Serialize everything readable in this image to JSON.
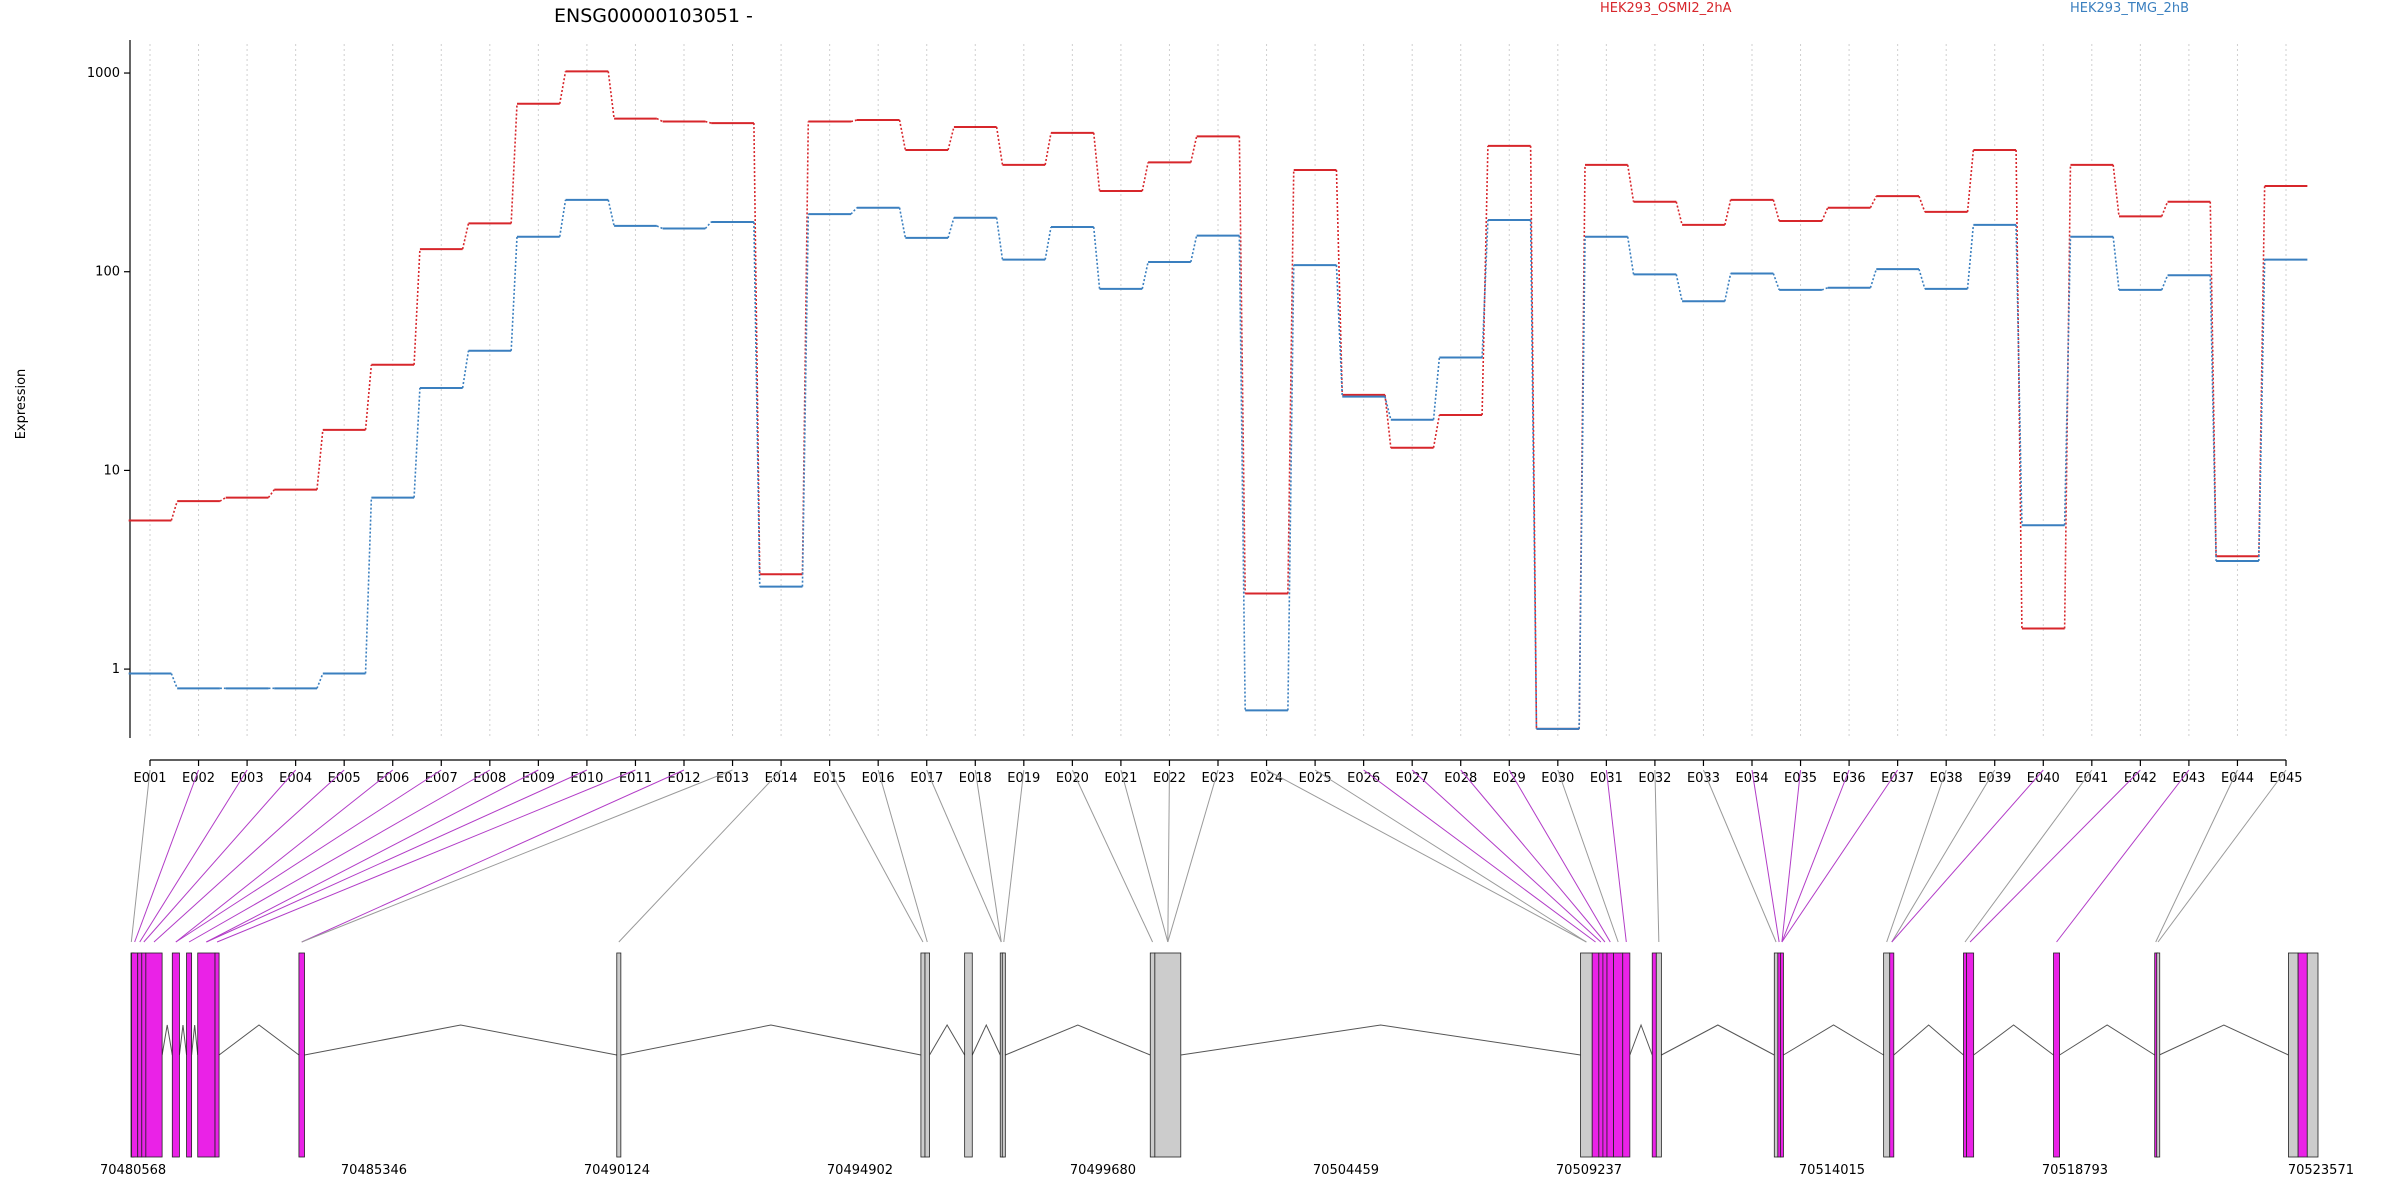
{
  "colors": {
    "series1": "#d7262b",
    "series2": "#3a7fbf",
    "highlight": "#ea22e7",
    "exon_gray": "#cccccc",
    "connector_gray": "#9a9a9a",
    "connector_magenta": "#b23cc7"
  },
  "chart_data": {
    "type": "line",
    "title": "ENSG00000103051 -",
    "ylabel": "Expression",
    "yscale": "log",
    "ylim": [
      0.45,
      1400
    ],
    "yticks": [
      "1",
      "10",
      "100",
      "1000"
    ],
    "categories": [
      "E001",
      "E002",
      "E003",
      "E004",
      "E005",
      "E006",
      "E007",
      "E008",
      "E009",
      "E010",
      "E011",
      "E012",
      "E013",
      "E014",
      "E015",
      "E016",
      "E017",
      "E018",
      "E019",
      "E020",
      "E021",
      "E022",
      "E023",
      "E024",
      "E025",
      "E026",
      "E027",
      "E028",
      "E029",
      "E030",
      "E031",
      "E032",
      "E033",
      "E034",
      "E035",
      "E036",
      "E037",
      "E038",
      "E039",
      "E040",
      "E041",
      "E042",
      "E043",
      "E044",
      "E045"
    ],
    "series": [
      {
        "name": "HEK293_OSMI2_2hA",
        "values": [
          5.6,
          7.0,
          7.3,
          8.0,
          16,
          34,
          130,
          175,
          700,
          1020,
          590,
          570,
          560,
          3.0,
          570,
          580,
          410,
          535,
          345,
          500,
          255,
          355,
          480,
          2.4,
          325,
          24,
          13,
          19,
          430,
          0.5,
          345,
          225,
          172,
          230,
          180,
          210,
          240,
          200,
          410,
          1.6,
          345,
          190,
          225,
          3.7,
          270
        ]
      },
      {
        "name": "HEK293_TMG_2hB",
        "values": [
          0.95,
          0.8,
          0.8,
          0.8,
          0.95,
          7.3,
          26,
          40,
          150,
          230,
          170,
          165,
          178,
          2.6,
          195,
          210,
          148,
          187,
          115,
          168,
          82,
          112,
          152,
          0.62,
          108,
          23.5,
          18,
          37,
          182,
          0.5,
          150,
          97,
          71,
          98,
          81,
          83,
          103,
          82,
          172,
          5.3,
          150,
          81,
          96,
          3.5,
          115
        ]
      }
    ],
    "genome_ticks": [
      "70480568",
      "70485346",
      "70490124",
      "70494902",
      "70499680",
      "70504459",
      "70509237",
      "70514015",
      "70518793",
      "70523571"
    ],
    "genome_range": [
      70480568,
      70523571
    ],
    "exon_bins": [
      [
        70480568,
        70480580
      ],
      [
        70480580,
        70480700
      ],
      [
        70480700,
        70480780
      ],
      [
        70480780,
        70480860
      ],
      [
        70480860,
        70481180
      ],
      [
        70481380,
        70481520
      ],
      [
        70481660,
        70481760
      ],
      [
        70481880,
        70482220
      ],
      [
        70482220,
        70482300
      ],
      [
        70483870,
        70483980
      ],
      [
        70490120,
        70490200
      ],
      [
        70496100,
        70496180
      ],
      [
        70496180,
        70496270
      ],
      [
        70496960,
        70497110
      ],
      [
        70497660,
        70497700
      ],
      [
        70497700,
        70497760
      ],
      [
        70500610,
        70500700
      ],
      [
        70500700,
        70501210
      ],
      [
        70509070,
        70509300
      ],
      [
        70509300,
        70509430
      ],
      [
        70509430,
        70509510
      ],
      [
        70509510,
        70509590
      ],
      [
        70509590,
        70509720
      ],
      [
        70509720,
        70509900
      ],
      [
        70509900,
        70510040
      ],
      [
        70510480,
        70510560
      ],
      [
        70510560,
        70510660
      ],
      [
        70512880,
        70512950
      ],
      [
        70512950,
        70513000
      ],
      [
        70513000,
        70513060
      ],
      [
        70515030,
        70515150
      ],
      [
        70515150,
        70515230
      ],
      [
        70516600,
        70516660
      ],
      [
        70516660,
        70516800
      ],
      [
        70518370,
        70518490
      ],
      [
        70520360,
        70520400
      ],
      [
        70520400,
        70520450
      ],
      [
        70522990,
        70523180
      ],
      [
        70523180,
        70523360
      ],
      [
        70523360,
        70523571
      ]
    ],
    "highlighted_exons": [
      "E002",
      "E003",
      "E004",
      "E005",
      "E006",
      "E007",
      "E008",
      "E009",
      "E010",
      "E011",
      "E012",
      "E026",
      "E027",
      "E028",
      "E029",
      "E031",
      "E034",
      "E035",
      "E036",
      "E037",
      "E040",
      "E042",
      "E043"
    ],
    "exon_bin_links": [
      0,
      1,
      2,
      3,
      4,
      5,
      5,
      6,
      7,
      7,
      8,
      9,
      9,
      10,
      11,
      12,
      14,
      14,
      15,
      16,
      17,
      17,
      17,
      18,
      18,
      19,
      20,
      21,
      22,
      23,
      24,
      26,
      27,
      28,
      29,
      29,
      29,
      30,
      31,
      31,
      32,
      33,
      34,
      35,
      36,
      37,
      38,
      39,
      39
    ]
  }
}
